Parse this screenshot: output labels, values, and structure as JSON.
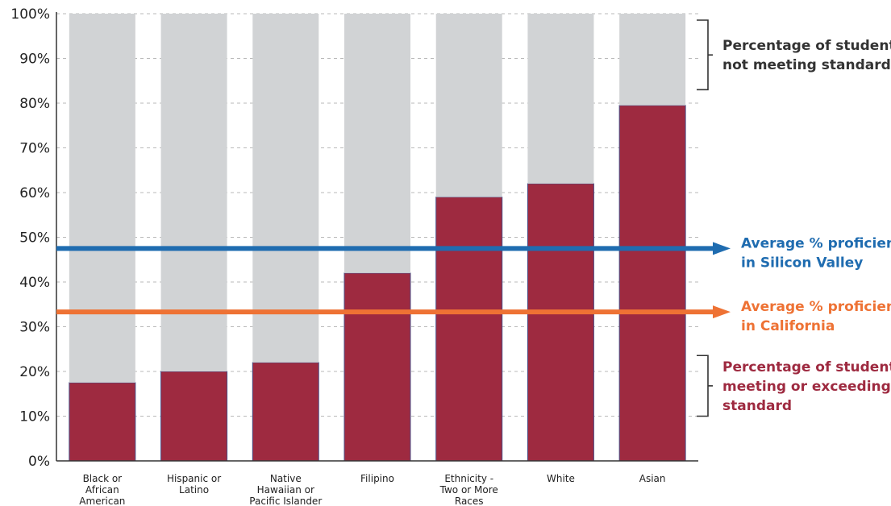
{
  "chart_data": {
    "type": "bar",
    "stacked": true,
    "categories": [
      [
        "Black or",
        "African",
        "American"
      ],
      [
        "Hispanic or",
        "Latino"
      ],
      [
        "Native",
        "Hawaiian or",
        "Pacific Islander"
      ],
      [
        "Filipino"
      ],
      [
        "Ethnicity -",
        "Two or More",
        "Races"
      ],
      [
        "White"
      ],
      [
        "Asian"
      ]
    ],
    "series": [
      {
        "values": [
          17.5,
          20,
          22,
          42,
          59,
          62,
          79.5
        ],
        "color": "#9e2a40"
      },
      {
        "values": [
          82.5,
          80,
          78,
          58,
          41,
          38,
          20.5
        ],
        "color": "#d1d3d5"
      }
    ],
    "yticks": [
      "0%",
      "10%",
      "20%",
      "30%",
      "40%",
      "50%",
      "60%",
      "70%",
      "80%",
      "90%",
      "100%"
    ],
    "ylim": [
      0,
      100
    ],
    "grid": "horizontal dashed",
    "reference_lines": [
      {
        "value": 47.5,
        "color": "#1f6cb0",
        "label": [
          "Average % proficient",
          "in Silicon Valley"
        ]
      },
      {
        "value": 33.3,
        "color": "#ee7234",
        "label": [
          "Average % proficient",
          "in California"
        ]
      }
    ],
    "bracket_annotations": [
      {
        "range": [
          83,
          100
        ],
        "color": "#333333",
        "label": [
          "Percentage of students",
          "not meeting standard"
        ]
      },
      {
        "range": [
          10,
          25
        ],
        "color": "#9e2a40",
        "label": [
          "Percentage of students",
          "meeting or exceeding",
          "standard"
        ]
      }
    ]
  }
}
